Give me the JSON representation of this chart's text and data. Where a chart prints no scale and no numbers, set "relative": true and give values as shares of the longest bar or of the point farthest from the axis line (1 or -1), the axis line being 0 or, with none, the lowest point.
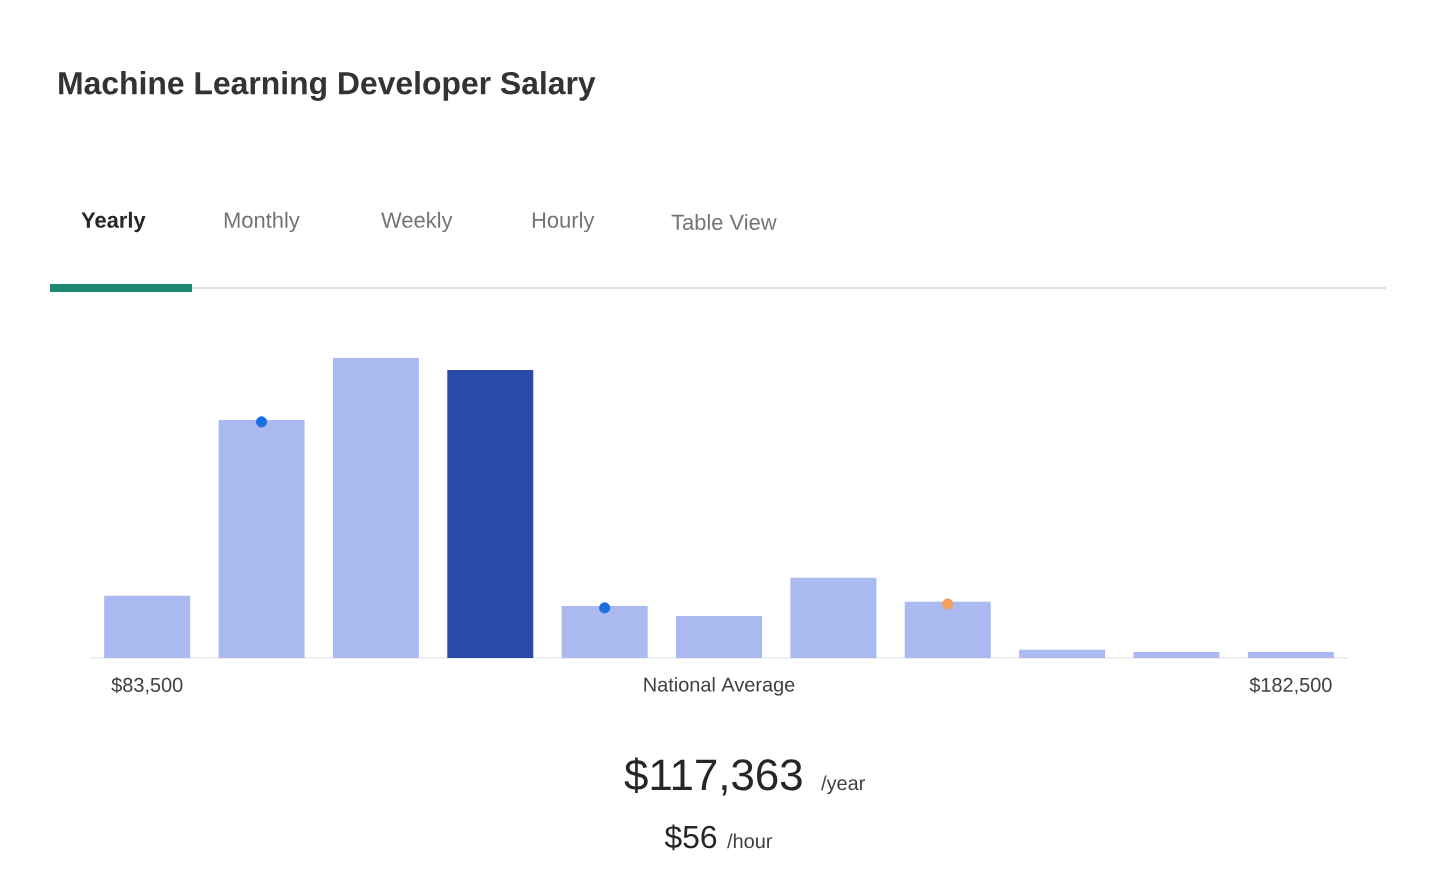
{
  "chart_data": {
    "type": "bar",
    "title": "Machine Learning Developer Salary",
    "relative": true,
    "categories": [
      "$83,500",
      null,
      null,
      null,
      null,
      "National Average",
      null,
      null,
      null,
      null,
      "$182,500"
    ],
    "series": [
      {
        "colors": [
          "#aab9f0",
          "#aab9f0",
          "#aab9f0",
          "#2a4aa8",
          "#aab9f0",
          "#aab9f0",
          "#aab9f0",
          "#aab9f0",
          "#aab9f0",
          "#aab9f0",
          "#aab9f0"
        ],
        "values": [
          0.207,
          0.793,
          1,
          0.96,
          0.173,
          0.14,
          0.267,
          0.187,
          0.027,
          0.02,
          0.02
        ]
      },
      {
        "type": "scatter",
        "color": "#1a6fe0",
        "marker": "circle",
        "values": [
          null,
          0.787,
          null,
          null,
          0.167,
          null,
          null,
          null,
          null,
          null,
          null
        ]
      },
      {
        "type": "scatter",
        "color": "#f5a05a",
        "marker": "circle",
        "values": [
          null,
          null,
          null,
          null,
          null,
          null,
          null,
          0.18,
          null,
          null,
          null
        ]
      }
    ],
    "annotations": [
      "Yearly",
      "Monthly",
      "Weekly",
      "Hourly",
      "Table View",
      "$117,363",
      "/year",
      "$56",
      "/hour"
    ]
  }
}
